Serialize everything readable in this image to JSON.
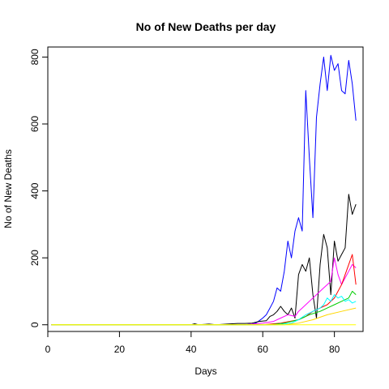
{
  "chart_data": {
    "type": "line",
    "title": "No of New Deaths per day",
    "xlabel": "Days",
    "ylabel": "No of New Deaths",
    "xlim": [
      0,
      88
    ],
    "ylim": [
      -20,
      830
    ],
    "x_ticks": [
      0,
      20,
      40,
      60,
      80
    ],
    "y_ticks": [
      0,
      200,
      400,
      600,
      800
    ],
    "grid": false,
    "legend": "none",
    "series": [
      {
        "color": "#0000ff",
        "x": [
          1,
          40,
          55,
          57,
          58,
          59,
          60,
          61,
          62,
          63,
          64,
          65,
          66,
          67,
          68,
          69,
          70,
          71,
          72,
          73,
          74,
          75,
          76,
          77,
          78,
          79,
          80,
          81,
          82,
          83,
          84,
          85,
          86
        ],
        "values": [
          0,
          0,
          0,
          2,
          5,
          12,
          20,
          30,
          50,
          70,
          110,
          100,
          160,
          250,
          200,
          280,
          320,
          280,
          700,
          500,
          320,
          620,
          720,
          800,
          700,
          805,
          760,
          780,
          700,
          690,
          790,
          720,
          610
        ]
      },
      {
        "color": "#000000",
        "x": [
          1,
          40,
          41,
          42,
          45,
          47,
          50,
          53,
          55,
          57,
          59,
          61,
          62,
          63,
          64,
          65,
          66,
          67,
          68,
          69,
          70,
          71,
          72,
          73,
          74,
          75,
          76,
          77,
          78,
          79,
          80,
          81,
          82,
          83,
          84,
          85,
          86
        ],
        "values": [
          0,
          0,
          3,
          0,
          2,
          0,
          2,
          4,
          4,
          5,
          10,
          12,
          25,
          30,
          40,
          55,
          40,
          30,
          50,
          20,
          150,
          180,
          160,
          200,
          90,
          20,
          180,
          270,
          230,
          90,
          250,
          190,
          210,
          230,
          390,
          330,
          360
        ]
      },
      {
        "color": "#ff00ff",
        "x": [
          1,
          55,
          60,
          63,
          65,
          67,
          69,
          70,
          71,
          72,
          73,
          74,
          75,
          76,
          77,
          78,
          79,
          80,
          81,
          82,
          83,
          84,
          85,
          86
        ],
        "values": [
          0,
          0,
          5,
          10,
          20,
          30,
          25,
          40,
          50,
          60,
          70,
          80,
          90,
          100,
          110,
          120,
          130,
          200,
          150,
          120,
          140,
          160,
          180,
          170
        ]
      },
      {
        "color": "#ff0000",
        "x": [
          1,
          60,
          65,
          70,
          72,
          74,
          76,
          78,
          80,
          81,
          82,
          83,
          84,
          85,
          86
        ],
        "values": [
          0,
          0,
          5,
          15,
          25,
          40,
          50,
          60,
          80,
          100,
          120,
          150,
          180,
          210,
          120
        ]
      },
      {
        "color": "#00cd00",
        "x": [
          1,
          62,
          66,
          70,
          73,
          76,
          78,
          80,
          82,
          84,
          85,
          86
        ],
        "values": [
          0,
          0,
          5,
          15,
          30,
          40,
          50,
          60,
          70,
          80,
          100,
          90
        ]
      },
      {
        "color": "#00ffff",
        "x": [
          1,
          64,
          68,
          70,
          72,
          74,
          76,
          77,
          78,
          79,
          80,
          81,
          82,
          83,
          84,
          85,
          86
        ],
        "values": [
          0,
          0,
          5,
          15,
          30,
          40,
          50,
          60,
          80,
          70,
          90,
          80,
          85,
          70,
          75,
          65,
          70
        ]
      },
      {
        "color": "#ffd700",
        "x": [
          1,
          66,
          70,
          74,
          78,
          82,
          86
        ],
        "values": [
          0,
          0,
          5,
          15,
          30,
          40,
          50
        ]
      },
      {
        "color": "#ffff00",
        "x": [
          1,
          86
        ],
        "values": [
          0,
          0
        ]
      }
    ]
  }
}
